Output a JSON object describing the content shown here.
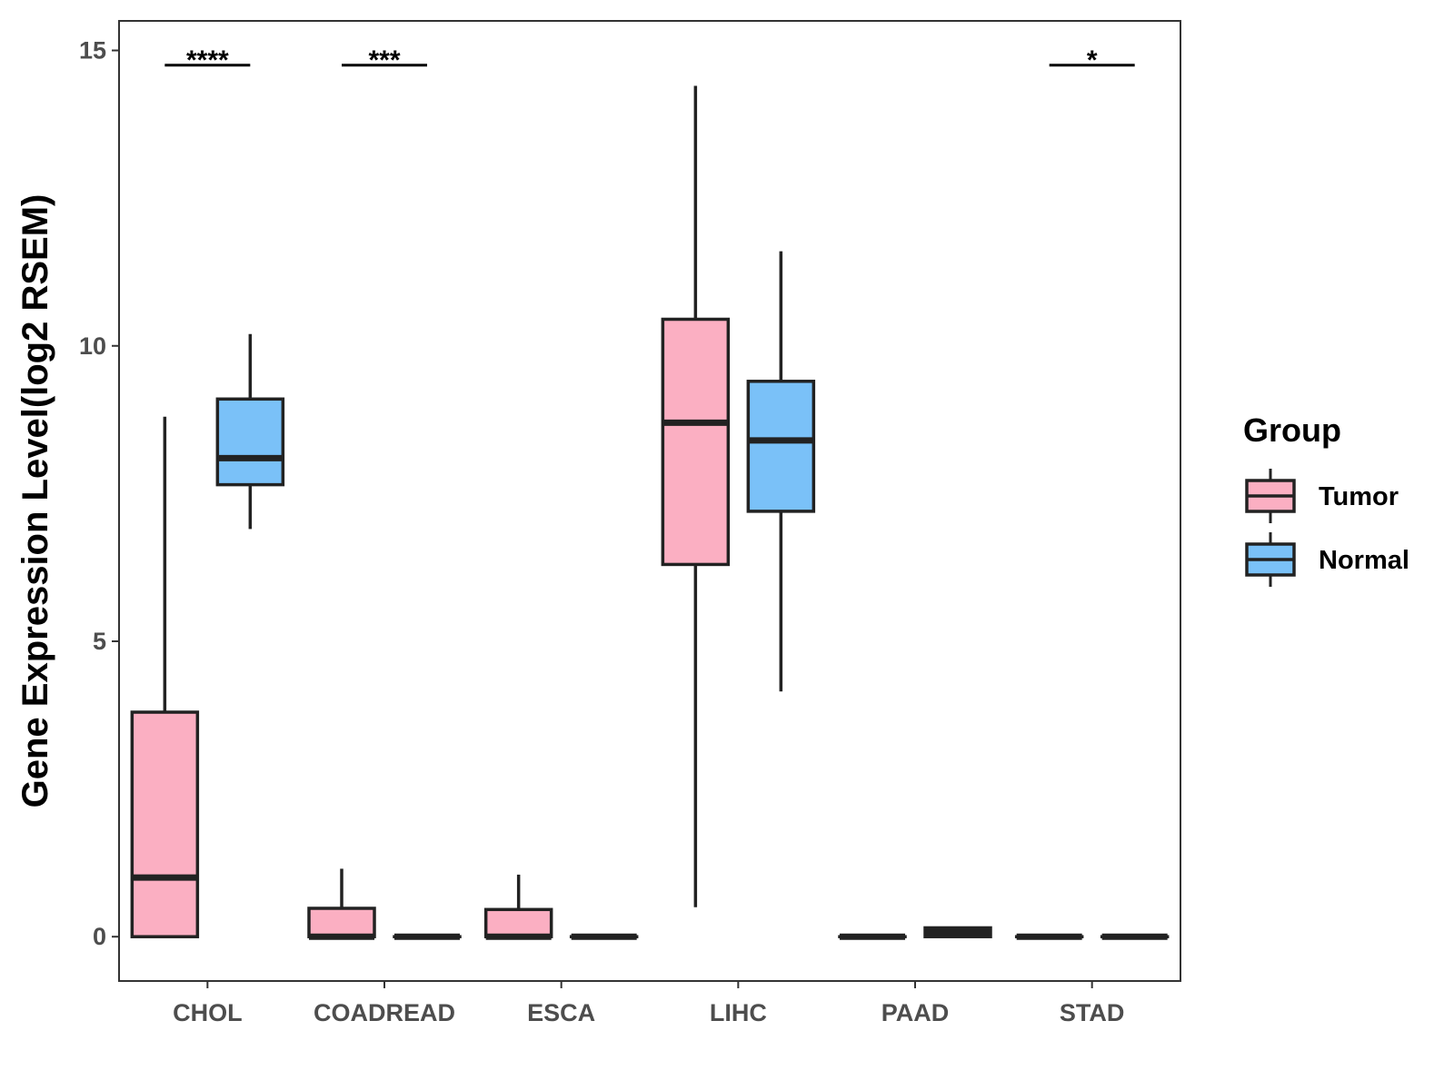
{
  "chart_data": {
    "type": "box",
    "title": "",
    "xlabel": "",
    "ylabel": "Gene Expression Level(log2 RSEM)",
    "ylim": [
      -0.75,
      15.5
    ],
    "yticks": [
      0,
      5,
      10,
      15
    ],
    "ytick_labels": [
      "0",
      "5",
      "10",
      "15"
    ],
    "categories": [
      "CHOL",
      "COADREAD",
      "ESCA",
      "LIHC",
      "PAAD",
      "STAD"
    ],
    "legend": {
      "title": "Group",
      "placement": "right",
      "entries": [
        {
          "name": "Tumor",
          "color": "#FBAFC2"
        },
        {
          "name": "Normal",
          "color": "#7AC1F8"
        }
      ]
    },
    "series": [
      {
        "name": "Tumor",
        "color": "#FBAFC2",
        "boxes": [
          {
            "category": "CHOL",
            "min": 0.0,
            "q1": 0.0,
            "median": 1.0,
            "q3": 3.8,
            "max": 8.8
          },
          {
            "category": "COADREAD",
            "min": 0.0,
            "q1": 0.0,
            "median": 0.0,
            "q3": 0.48,
            "max": 1.15
          },
          {
            "category": "ESCA",
            "min": 0.0,
            "q1": 0.0,
            "median": 0.0,
            "q3": 0.46,
            "max": 1.05
          },
          {
            "category": "LIHC",
            "min": 0.5,
            "q1": 6.3,
            "median": 8.7,
            "q3": 10.45,
            "max": 14.4
          },
          {
            "category": "PAAD",
            "min": 0.0,
            "q1": 0.0,
            "median": 0.0,
            "q3": 0.0,
            "max": 0.0
          },
          {
            "category": "STAD",
            "min": 0.0,
            "q1": 0.0,
            "median": 0.0,
            "q3": 0.0,
            "max": 0.0
          }
        ]
      },
      {
        "name": "Normal",
        "color": "#7AC1F8",
        "boxes": [
          {
            "category": "CHOL",
            "min": 6.9,
            "q1": 7.65,
            "median": 8.1,
            "q3": 9.1,
            "max": 10.2
          },
          {
            "category": "COADREAD",
            "min": 0.0,
            "q1": 0.0,
            "median": 0.0,
            "q3": 0.0,
            "max": 0.0
          },
          {
            "category": "ESCA",
            "min": 0.0,
            "q1": 0.0,
            "median": 0.0,
            "q3": 0.0,
            "max": 0.0
          },
          {
            "category": "LIHC",
            "min": 4.15,
            "q1": 7.2,
            "median": 8.4,
            "q3": 9.4,
            "max": 11.6
          },
          {
            "category": "PAAD",
            "min": 0.0,
            "q1": 0.0,
            "median": 0.08,
            "q3": 0.15,
            "max": 0.15
          },
          {
            "category": "STAD",
            "min": 0.0,
            "q1": 0.0,
            "median": 0.0,
            "q3": 0.0,
            "max": 0.0
          }
        ]
      }
    ],
    "significance": [
      {
        "category": "CHOL",
        "label": "****",
        "y": 14.75
      },
      {
        "category": "COADREAD",
        "label": "***",
        "y": 14.75
      },
      {
        "category": "STAD",
        "label": "*",
        "y": 14.75
      }
    ]
  }
}
